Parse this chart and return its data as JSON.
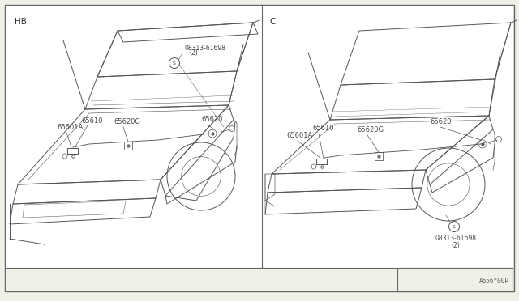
{
  "bg_color": "#f0f0e8",
  "line_color": "#555555",
  "text_color": "#444444",
  "diagram_bg": "#f0f0e8",
  "panel_left_label": "HB",
  "panel_right_label": "C",
  "footer_text": "A656*00P",
  "part_screw": "08313-61698",
  "part_screw_qty": "(2)",
  "part_65601A": "65601A",
  "part_65610": "65610",
  "part_65620G": "65620G",
  "part_65620": "65620",
  "figsize": [
    6.4,
    3.72
  ],
  "dpi": 100
}
